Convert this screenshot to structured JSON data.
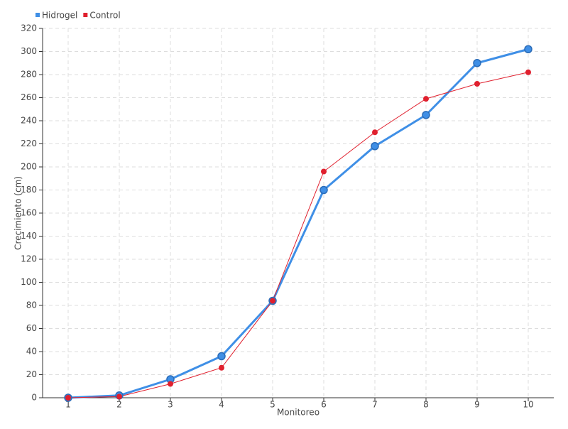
{
  "chart_data": {
    "type": "line",
    "x_label": "Monitoreo",
    "y_label": "Crecimiento (cm)",
    "categories": [
      "1",
      "2",
      "3",
      "4",
      "5",
      "6",
      "7",
      "8",
      "9",
      "10"
    ],
    "series": [
      {
        "name": "Hidrogel",
        "color": "#3f8fe6",
        "values": [
          0,
          2,
          16,
          36,
          84,
          180,
          218,
          245,
          290,
          302
        ]
      },
      {
        "name": "Control",
        "color": "#e0202e",
        "values": [
          0,
          1,
          12,
          26,
          84,
          196,
          230,
          259,
          272,
          282
        ]
      }
    ],
    "ylim": [
      0,
      320
    ],
    "yticks": [
      0,
      20,
      40,
      60,
      80,
      100,
      120,
      140,
      160,
      180,
      200,
      220,
      240,
      260,
      280,
      300,
      320
    ],
    "grid": true,
    "legend": "top-left"
  }
}
